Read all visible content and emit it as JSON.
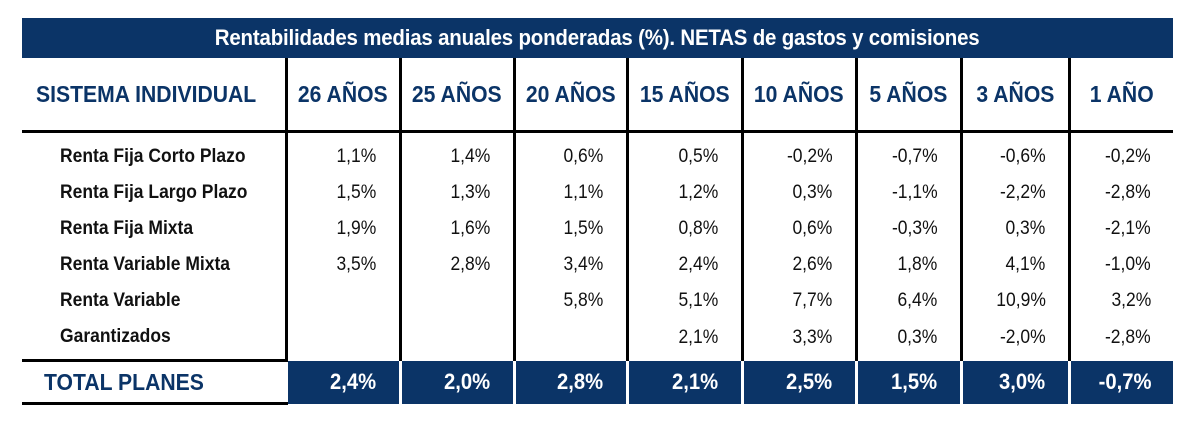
{
  "title": "Rentabilidades medias anuales ponderadas (%). NETAS de gastos y comisiones",
  "header": {
    "label": "SISTEMA INDIVIDUAL",
    "columns": [
      "26 AÑOS",
      "25 AÑOS",
      "20 AÑOS",
      "15 AÑOS",
      "10 AÑOS",
      "5 AÑOS",
      "3 AÑOS",
      "1 AÑO"
    ]
  },
  "rows": [
    {
      "label": "Renta Fija Corto Plazo",
      "values": [
        "1,1%",
        "1,4%",
        "0,6%",
        "0,5%",
        "-0,2%",
        "-0,7%",
        "-0,6%",
        "-0,2%"
      ]
    },
    {
      "label": "Renta Fija Largo Plazo",
      "values": [
        "1,5%",
        "1,3%",
        "1,1%",
        "1,2%",
        "0,3%",
        "-1,1%",
        "-2,2%",
        "-2,8%"
      ]
    },
    {
      "label": "Renta Fija Mixta",
      "values": [
        "1,9%",
        "1,6%",
        "1,5%",
        "0,8%",
        "0,6%",
        "-0,3%",
        "0,3%",
        "-2,1%"
      ]
    },
    {
      "label": "Renta Variable Mixta",
      "values": [
        "3,5%",
        "2,8%",
        "3,4%",
        "2,4%",
        "2,6%",
        "1,8%",
        "4,1%",
        "-1,0%"
      ]
    },
    {
      "label": "Renta Variable",
      "values": [
        "",
        "",
        "5,8%",
        "5,1%",
        "7,7%",
        "6,4%",
        "10,9%",
        "3,2%"
      ]
    },
    {
      "label": "Garantizados",
      "values": [
        "",
        "",
        "",
        "2,1%",
        "3,3%",
        "0,3%",
        "-2,0%",
        "-2,8%"
      ]
    }
  ],
  "total": {
    "label": "TOTAL PLANES",
    "values": [
      "2,4%",
      "2,0%",
      "2,8%",
      "2,1%",
      "2,5%",
      "1,5%",
      "3,0%",
      "-0,7%"
    ]
  },
  "colors": {
    "navy": "#0b3467",
    "text": "#111111",
    "white": "#ffffff"
  }
}
